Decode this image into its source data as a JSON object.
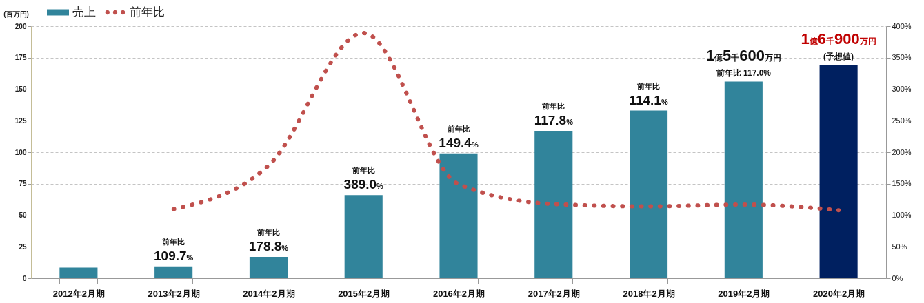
{
  "chart_data": {
    "type": "bar",
    "categories": [
      "2012年2月期",
      "2013年2月期",
      "2014年2月期",
      "2015年2月期",
      "2016年2月期",
      "2017年2月期",
      "2018年2月期",
      "2019年2月期",
      "2020年2月期"
    ],
    "ylabel": "(百万円)",
    "series": [
      {
        "name": "売上",
        "color": "#31849b",
        "colors": [
          "#31849b",
          "#31849b",
          "#31849b",
          "#31849b",
          "#31849b",
          "#31849b",
          "#31849b",
          "#31849b",
          "#002060"
        ],
        "values": [
          8.5,
          9.4,
          17,
          66,
          99,
          117,
          133,
          156,
          169
        ]
      },
      {
        "name": "前年比",
        "type": "line",
        "axis": "y2",
        "color": "#c0504d",
        "values": [
          null,
          109.7,
          178.8,
          389.0,
          149.4,
          117.8,
          114.1,
          117.0,
          108
        ]
      }
    ],
    "ylim": [
      0,
      200
    ],
    "yticks": [
      0,
      25,
      50,
      75,
      100,
      125,
      150,
      175,
      200
    ],
    "y2lim": [
      0,
      400
    ],
    "y2ticks": [
      {
        "value": 0,
        "label": "0%"
      },
      {
        "value": 50,
        "label": "50%"
      },
      {
        "value": 100,
        "label": "100%"
      },
      {
        "value": 150,
        "label": "150%"
      },
      {
        "value": 200,
        "label": "200%"
      },
      {
        "value": 250,
        "label": "250%"
      },
      {
        "value": 300,
        "label": "300%"
      },
      {
        "value": 350,
        "label": "350%"
      },
      {
        "value": 400,
        "label": "400%"
      }
    ],
    "annotations": [
      {
        "text": "前年比\n109.7%",
        "x": "2013年2月期",
        "y": 9.4
      },
      {
        "text": "前年比\n178.8%",
        "x": "2014年2月期",
        "y": 17
      },
      {
        "text": "前年比\n389.0%",
        "x": "2015年2月期",
        "y": 66
      },
      {
        "text": "前年比\n149.4%",
        "x": "2016年2月期",
        "y": 99
      },
      {
        "text": "前年比\n117.8%",
        "x": "2017年2月期",
        "y": 117
      },
      {
        "text": "前年比\n114.1%",
        "x": "2018年2月期",
        "y": 133
      },
      {
        "text": "前年比 117.0%",
        "x": "2019年2月期",
        "y": 156
      },
      {
        "text": "1億5千600万円",
        "x": "2019年2月期",
        "y": 156
      },
      {
        "text": "(予想値)",
        "x": "2020年2月期",
        "y": 169
      },
      {
        "text": "1億6千900万円",
        "x": "2020年2月期",
        "y": 169
      }
    ],
    "grid": "y",
    "legend": "top left",
    "line_style": "dotted"
  }
}
